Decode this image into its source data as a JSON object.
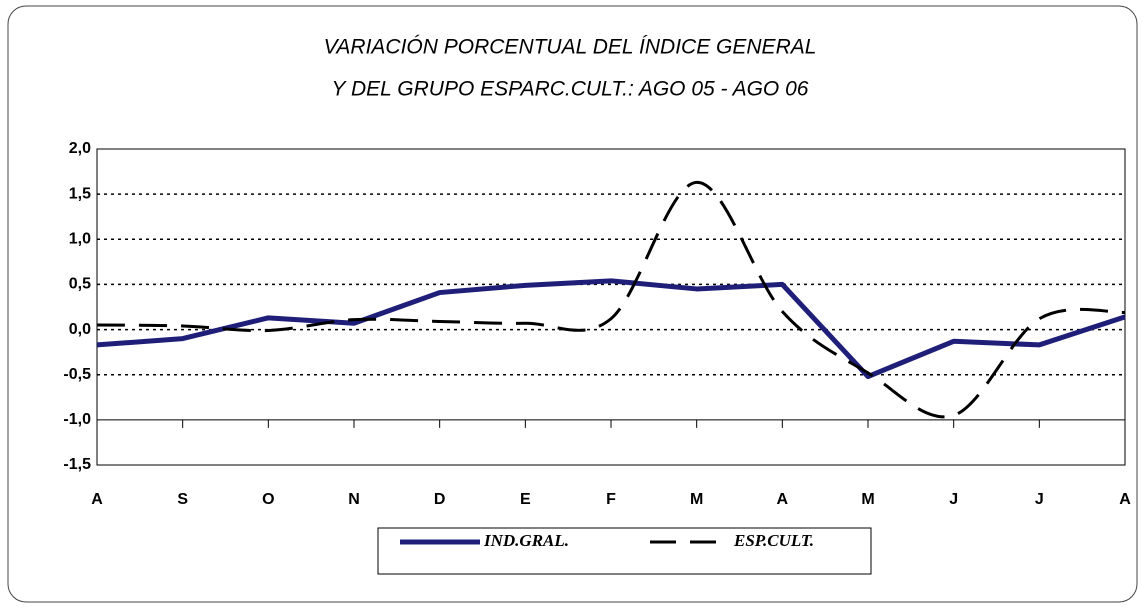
{
  "chart_data": {
    "type": "line",
    "title": [
      "VARIACIÓN PORCENTUAL DEL ÍNDICE GENERAL",
      "Y DEL GRUPO ESPARC.CULT.: AGO 05 - AGO 06"
    ],
    "categories": [
      "A",
      "S",
      "O",
      "N",
      "D",
      "E",
      "F",
      "M",
      "A",
      "M",
      "J",
      "J",
      "A"
    ],
    "series": [
      {
        "name": "IND.GRAL.",
        "color": "#1f1f7a",
        "style": "solid",
        "smooth": false,
        "values": [
          -0.17,
          -0.1,
          0.13,
          0.07,
          0.41,
          0.49,
          0.54,
          0.45,
          0.5,
          -0.52,
          -0.13,
          -0.17,
          0.14
        ]
      },
      {
        "name": "ESP.CULT.",
        "color": "#000000",
        "style": "dashed",
        "smooth": true,
        "values": [
          0.05,
          0.04,
          -0.01,
          0.11,
          0.09,
          0.07,
          0.12,
          1.63,
          0.2,
          -0.48,
          -0.95,
          0.12,
          0.19
        ]
      }
    ],
    "ylim": [
      -1.5,
      2.0
    ],
    "yticks": [
      {
        "value": -1.5,
        "label": "-1,5"
      },
      {
        "value": -1.0,
        "label": "-1,0"
      },
      {
        "value": -0.5,
        "label": "-0,5"
      },
      {
        "value": 0,
        "label": "0,0"
      },
      {
        "value": 0.5,
        "label": "0,5"
      },
      {
        "value": 1.0,
        "label": "1,0"
      },
      {
        "value": 1.5,
        "label": "1,5"
      },
      {
        "value": 2.0,
        "label": "2,0"
      }
    ],
    "xaxis_crosses": -1.0,
    "grid": true,
    "legend": "bottom"
  }
}
